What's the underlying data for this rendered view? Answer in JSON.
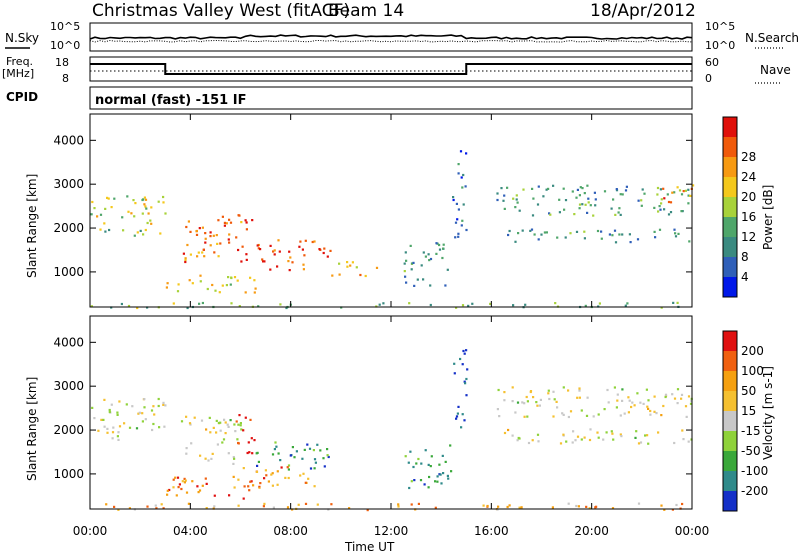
{
  "header": {
    "title": "Christmas Valley West (fitACF)",
    "beam": "Beam 14",
    "date": "18/Apr/2012",
    "cpid_label": "CPID",
    "mode": "normal (fast) -151 IF"
  },
  "top_panels": {
    "nsky": {
      "left_label": "N.Sky",
      "right_label": "N.Search",
      "tick_hi": "10^5",
      "tick_lo": "10^0"
    },
    "freq": {
      "left_label_1": "Freq.",
      "left_label_2": "[MHz]",
      "right_label": "Nave",
      "left_ticks": [
        "18",
        "8"
      ],
      "right_ticks": [
        "60",
        "0"
      ]
    }
  },
  "chart_data": [
    {
      "type": "heatmap",
      "name": "Power",
      "ylabel": "Slant Range [km]",
      "yticks": [
        1000,
        2000,
        3000,
        4000
      ],
      "ylim": [
        200,
        4600
      ],
      "xlim": [
        0,
        24
      ],
      "colorbar": {
        "label": "Power [dB]",
        "ticks": [
          4,
          8,
          12,
          16,
          20,
          24,
          28
        ],
        "colors": [
          "#0018e8",
          "#2f5fb8",
          "#3a8a80",
          "#4fa66a",
          "#a8d23a",
          "#f4c81c",
          "#f79a12",
          "#f05a0a",
          "#e0100a"
        ]
      },
      "echo_regions": [
        {
          "t0": 0.0,
          "t1": 3.0,
          "r0": 2050,
          "r1": 2750,
          "level": 0.55
        },
        {
          "t0": 0.0,
          "t1": 3.0,
          "r0": 1800,
          "r1": 2000,
          "level": 0.45
        },
        {
          "t0": 3.6,
          "t1": 6.6,
          "r0": 1250,
          "r1": 2350,
          "level": 0.8
        },
        {
          "t0": 6.6,
          "t1": 9.6,
          "r0": 1050,
          "r1": 1750,
          "level": 0.85
        },
        {
          "t0": 9.6,
          "t1": 11.4,
          "r0": 900,
          "r1": 1250,
          "level": 0.65
        },
        {
          "t0": 3.0,
          "t1": 6.8,
          "r0": 550,
          "r1": 950,
          "level": 0.6
        },
        {
          "t0": 14.4,
          "t1": 15.0,
          "r0": 1800,
          "r1": 3900,
          "level": 0.25
        },
        {
          "t0": 12.5,
          "t1": 14.4,
          "r0": 700,
          "r1": 1700,
          "level": 0.3
        },
        {
          "t0": 16.2,
          "t1": 24.0,
          "r0": 2300,
          "r1": 3000,
          "level": 0.35
        },
        {
          "t0": 16.5,
          "t1": 24.0,
          "r0": 1700,
          "r1": 2000,
          "level": 0.3
        },
        {
          "t0": 22.5,
          "t1": 24.0,
          "r0": 2600,
          "r1": 3000,
          "level": 0.75
        },
        {
          "t0": 0.0,
          "t1": 24.0,
          "r0": 200,
          "r1": 320,
          "level": 0.4
        }
      ]
    },
    {
      "type": "heatmap",
      "name": "Velocity",
      "ylabel": "Slant Range [km]",
      "yticks": [
        1000,
        2000,
        3000,
        4000
      ],
      "ylim": [
        200,
        4600
      ],
      "xlim": [
        0,
        24
      ],
      "colorbar": {
        "label": "Velocity [m s-1]",
        "ticks": [
          200,
          100,
          50,
          15,
          -15,
          -50,
          -100,
          -200
        ],
        "colors": [
          "#1430c8",
          "#2f8a8a",
          "#3aa83a",
          "#8fd23a",
          "#c8c8c8",
          "#f5c030",
          "#f5a010",
          "#f06010",
          "#e01010"
        ]
      },
      "echo_regions": [
        {
          "t0": 0.0,
          "t1": 3.0,
          "r0": 1800,
          "r1": 2750,
          "level": 0.5
        },
        {
          "t0": 3.6,
          "t1": 6.0,
          "r0": 1250,
          "r1": 2350,
          "level": 0.5
        },
        {
          "t0": 5.8,
          "t1": 6.6,
          "r0": 1400,
          "r1": 2400,
          "level": 0.95
        },
        {
          "t0": 6.6,
          "t1": 9.6,
          "r0": 1100,
          "r1": 1750,
          "level": 0.2
        },
        {
          "t0": 3.0,
          "t1": 6.8,
          "r0": 450,
          "r1": 1000,
          "level": 0.8
        },
        {
          "t0": 6.0,
          "t1": 9.0,
          "r0": 700,
          "r1": 1200,
          "level": 0.75
        },
        {
          "t0": 14.4,
          "t1": 15.0,
          "r0": 2000,
          "r1": 3900,
          "level": 0.05
        },
        {
          "t0": 12.5,
          "t1": 14.4,
          "r0": 700,
          "r1": 1700,
          "level": 0.25
        },
        {
          "t0": 16.2,
          "t1": 24.0,
          "r0": 2300,
          "r1": 3000,
          "level": 0.5
        },
        {
          "t0": 16.5,
          "t1": 24.0,
          "r0": 1700,
          "r1": 2050,
          "level": 0.5
        },
        {
          "t0": 0.0,
          "t1": 24.0,
          "r0": 200,
          "r1": 350,
          "level": 0.7
        }
      ]
    }
  ],
  "xaxis": {
    "label": "Time UT",
    "ticks": [
      "00:00",
      "04:00",
      "08:00",
      "12:00",
      "16:00",
      "20:00",
      "00:00"
    ]
  }
}
